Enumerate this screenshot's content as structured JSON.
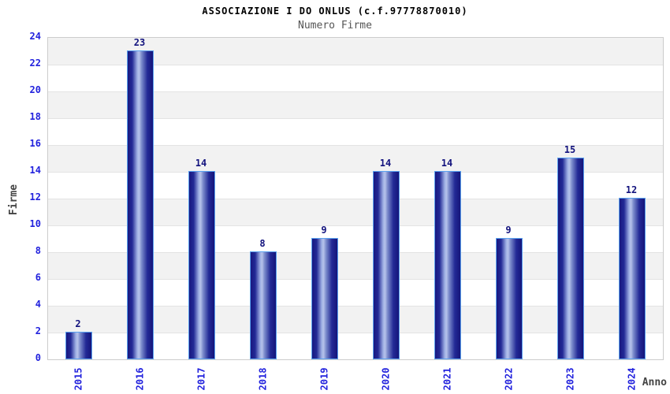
{
  "chart_data": {
    "type": "bar",
    "title": "ASSOCIAZIONE I DO ONLUS (c.f.97778870010)",
    "subtitle": "Numero Firme",
    "xlabel": "Anno",
    "ylabel": "Firme",
    "categories": [
      "2015",
      "2016",
      "2017",
      "2018",
      "2019",
      "2020",
      "2021",
      "2022",
      "2023",
      "2024"
    ],
    "values": [
      2,
      23,
      14,
      8,
      9,
      14,
      14,
      9,
      15,
      12
    ],
    "ylim": [
      0,
      24
    ],
    "ytick_step": 2,
    "grid": true,
    "legend_position": "none",
    "colors": {
      "tick_label": "#2222dd",
      "value_label": "#13137e",
      "title": "#000000",
      "subtitle": "#555555",
      "axis_title": "#444444",
      "band_gray": "#f2f2f2",
      "band_white": "#ffffff",
      "gridline": "#e3e3e3",
      "plot_border": "#cccccc",
      "bar_border": "#5aa2f0",
      "bar_gradient": [
        "#181880 0%",
        "#232a96 18%",
        "#9fb0e4 38%",
        "#b6c2ea 45%",
        "#7c8ccc 55%",
        "#232a96 78%",
        "#15157a 100%"
      ]
    }
  }
}
